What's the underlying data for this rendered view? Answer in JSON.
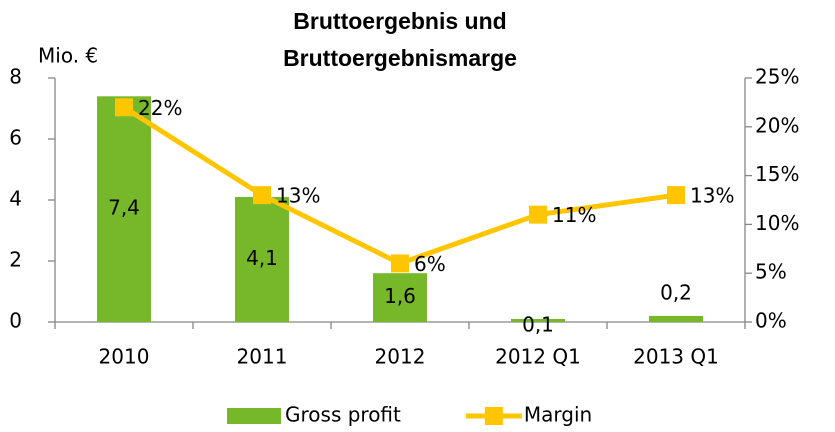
{
  "chart_data": {
    "type": "bar-line",
    "title": [
      "Bruttoergebnis und",
      "Bruttoergebnismarge"
    ],
    "y_label": "Mio. €",
    "categories": [
      "2010",
      "2011",
      "2012",
      "2012 Q1",
      "2013 Q1"
    ],
    "series": [
      {
        "name": "Gross profit",
        "type": "bar",
        "color": "#77b82a",
        "values": [
          7.4,
          4.1,
          1.6,
          0.1,
          0.2
        ],
        "value_labels": [
          "7,4",
          "4,1",
          "1,6",
          "0,1",
          "0,2"
        ]
      },
      {
        "name": "Margin",
        "type": "line",
        "axis": "y2",
        "color": "#ffc600",
        "values": [
          22,
          13,
          6,
          11,
          13
        ],
        "value_labels": [
          "22%",
          "13%",
          "6%",
          "11%",
          "13%"
        ]
      }
    ],
    "ylim": [
      0,
      8
    ],
    "yticks": [
      0,
      2,
      4,
      6,
      8
    ],
    "y2lim": [
      0,
      25
    ],
    "y2ticks": [
      {
        "value": 0,
        "label": "0%"
      },
      {
        "value": 5,
        "label": "5%"
      },
      {
        "value": 10,
        "label": "10%"
      },
      {
        "value": 15,
        "label": "15%"
      },
      {
        "value": 20,
        "label": "20%"
      },
      {
        "value": 25,
        "label": "25%"
      }
    ],
    "legend": "bottom"
  }
}
